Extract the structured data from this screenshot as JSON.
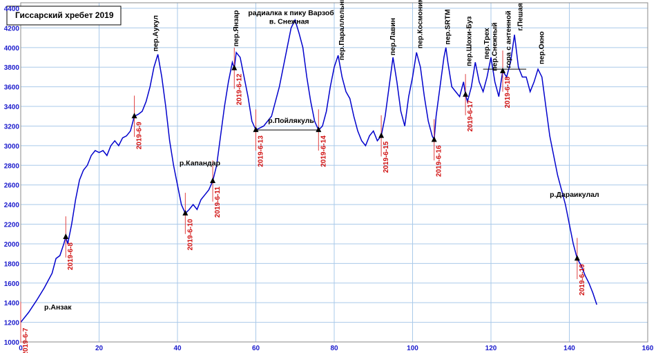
{
  "chart_data": {
    "type": "line",
    "title": "Гиссарский хребет 2019",
    "xlim": [
      0,
      160
    ],
    "xticks": [
      0,
      20,
      40,
      60,
      80,
      100,
      120,
      140,
      160
    ],
    "ylim": [
      1000,
      4400
    ],
    "yticks": [
      1000,
      1200,
      1400,
      1600,
      1800,
      2000,
      2200,
      2400,
      2600,
      2800,
      3000,
      3200,
      3400,
      3600,
      3800,
      4000,
      4200,
      4400
    ],
    "grid": true,
    "series": [
      {
        "color": "#0000cc",
        "x": [
          0,
          2,
          4,
          6,
          8,
          9,
          10,
          11,
          11.5,
          12,
          13,
          14,
          15,
          16,
          17,
          18,
          19,
          20,
          21,
          22,
          23,
          24,
          25,
          26,
          27,
          28,
          29,
          30,
          31,
          32,
          33,
          34,
          35,
          36,
          37,
          38,
          39,
          40,
          41,
          42,
          43,
          44,
          45,
          46,
          47,
          48,
          49,
          50,
          51,
          52,
          53,
          54,
          54.5,
          55,
          56,
          57,
          58,
          59,
          60,
          62,
          64,
          66,
          67,
          68,
          69,
          70,
          71,
          72,
          73,
          74,
          75,
          76,
          77,
          78,
          79,
          80,
          81,
          82,
          83,
          84,
          85,
          86,
          87,
          88,
          89,
          90,
          91,
          92,
          93,
          94,
          95,
          96,
          97,
          98,
          99,
          100,
          101,
          102,
          103,
          104,
          105,
          105.5,
          106,
          107,
          108,
          108.5,
          109,
          110,
          111,
          112,
          113,
          113.5,
          114,
          115,
          116,
          117,
          118,
          119,
          120,
          121,
          122,
          123,
          124,
          125,
          126,
          127,
          128,
          129,
          130,
          131,
          132,
          133,
          134,
          135,
          136,
          137,
          138,
          139,
          140,
          141,
          142,
          143,
          144,
          145,
          146,
          147
        ],
        "values": [
          1200,
          1300,
          1420,
          1550,
          1700,
          1850,
          1880,
          2000,
          2070,
          2000,
          2200,
          2450,
          2650,
          2750,
          2800,
          2900,
          2950,
          2930,
          2950,
          2900,
          3000,
          3050,
          3000,
          3080,
          3100,
          3150,
          3300,
          3320,
          3350,
          3450,
          3600,
          3800,
          3930,
          3700,
          3400,
          3050,
          2800,
          2600,
          2400,
          2310,
          2350,
          2400,
          2350,
          2450,
          2500,
          2550,
          2640,
          2800,
          3100,
          3400,
          3650,
          3850,
          3790,
          3950,
          3900,
          3700,
          3500,
          3250,
          3160,
          3200,
          3300,
          3600,
          3800,
          4000,
          4200,
          4280,
          4150,
          4000,
          3700,
          3450,
          3250,
          3160,
          3200,
          3350,
          3600,
          3800,
          3920,
          3700,
          3550,
          3480,
          3300,
          3150,
          3050,
          3000,
          3100,
          3150,
          3050,
          3100,
          3300,
          3600,
          3900,
          3650,
          3350,
          3200,
          3500,
          3700,
          3950,
          3800,
          3500,
          3250,
          3100,
          3060,
          3300,
          3600,
          3900,
          4000,
          3850,
          3600,
          3550,
          3500,
          3650,
          3520,
          3450,
          3600,
          3850,
          3650,
          3550,
          3700,
          3900,
          3650,
          3500,
          3760,
          3700,
          3850,
          4130,
          3800,
          3700,
          3700,
          3550,
          3650,
          3780,
          3700,
          3400,
          3100,
          2900,
          2700,
          2550,
          2400,
          2200,
          2000,
          1850,
          1780,
          1680,
          1600,
          1500,
          1380
        ]
      }
    ],
    "markers": [
      {
        "x": 0,
        "y": 1200,
        "label": "2019-6-7"
      },
      {
        "x": 11.5,
        "y": 2070,
        "label": "2019-6-8"
      },
      {
        "x": 29,
        "y": 3300,
        "label": "2019-6-9"
      },
      {
        "x": 42,
        "y": 2310,
        "label": "2019-6-10"
      },
      {
        "x": 49,
        "y": 2640,
        "label": "2019-6-11"
      },
      {
        "x": 54.5,
        "y": 3790,
        "label": "2019-6-12"
      },
      {
        "x": 60,
        "y": 3160,
        "label": "2019-6-13"
      },
      {
        "x": 76,
        "y": 3160,
        "label": "2019-6-14"
      },
      {
        "x": 92,
        "y": 3100,
        "label": "2019-6-15"
      },
      {
        "x": 105.5,
        "y": 3060,
        "label": "2019-6-16"
      },
      {
        "x": 113.5,
        "y": 3520,
        "label": "2019-6-17"
      },
      {
        "x": 123,
        "y": 3760,
        "label": "2019-6-18"
      },
      {
        "x": 142,
        "y": 1850,
        "label": "2019-6-19"
      }
    ],
    "hlines": [
      {
        "x": [
          60,
          76
        ],
        "y": 3160
      },
      {
        "x": [
          118,
          129
        ],
        "y": 3780
      }
    ],
    "annotations": [
      "р.Анзак",
      "р.Капандар",
      "радиалка к пику Варзоб",
      "в. Снежная",
      "р.Пойлякуль",
      "р.Дараикулал",
      "пер.Аукул",
      "пер.Янзар",
      "пер.Параллельный",
      "пер.Лавин",
      "пер.Космонимков",
      "пер.SRTM",
      "пер.Шохи-Буз",
      "пер.Трех",
      "пер.Снежный",
      "гора с антенной",
      "г.Пешая",
      "пер.Окно"
    ]
  }
}
